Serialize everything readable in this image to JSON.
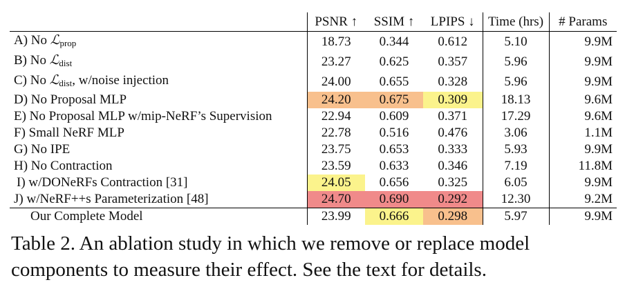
{
  "columns": [
    "",
    "PSNR ↑",
    "SSIM ↑",
    "LPIPS ↓",
    "Time (hrs)",
    "# Params"
  ],
  "rows": [
    {
      "label_pre": "A) No ",
      "symbol": "ℒ",
      "sub": "prop",
      "label_post": "",
      "psnr": "18.73",
      "ssim": "0.344",
      "lpips": "0.612",
      "time": "5.10",
      "params": "9.9M"
    },
    {
      "label_pre": "B) No ",
      "symbol": "ℒ",
      "sub": "dist",
      "label_post": "",
      "psnr": "23.27",
      "ssim": "0.625",
      "lpips": "0.357",
      "time": "5.96",
      "params": "9.9M"
    },
    {
      "label_pre": "C) No ",
      "symbol": "ℒ",
      "sub": "dist",
      "label_post": ", w/noise injection",
      "psnr": "24.00",
      "ssim": "0.655",
      "lpips": "0.328",
      "time": "5.96",
      "params": "9.9M"
    },
    {
      "label": "D) No Proposal MLP",
      "psnr": "24.20",
      "ssim": "0.675",
      "lpips": "0.309",
      "time": "18.13",
      "params": "9.6M",
      "hl": {
        "psnr": 2,
        "ssim": 2,
        "lpips": 3
      }
    },
    {
      "label": "E) No Proposal MLP w/mip-NeRF’s Supervision",
      "psnr": "22.94",
      "ssim": "0.609",
      "lpips": "0.371",
      "time": "17.29",
      "params": "9.6M"
    },
    {
      "label": "F) Small NeRF MLP",
      "psnr": "22.78",
      "ssim": "0.516",
      "lpips": "0.476",
      "time": "3.06",
      "params": "1.1M"
    },
    {
      "label": "G) No IPE",
      "psnr": "23.75",
      "ssim": "0.653",
      "lpips": "0.333",
      "time": "5.93",
      "params": "9.9M"
    },
    {
      "label": "H) No Contraction",
      "psnr": "23.59",
      "ssim": "0.633",
      "lpips": "0.346",
      "time": "7.19",
      "params": "11.8M"
    },
    {
      "label": "I) w/DONeRFs Contraction [31]",
      "psnr": "24.05",
      "ssim": "0.656",
      "lpips": "0.325",
      "time": "6.05",
      "params": "9.9M",
      "hl": {
        "psnr": 3
      },
      "indent": true
    },
    {
      "label": "J) w/NeRF++s Parameterization [48]",
      "psnr": "24.70",
      "ssim": "0.690",
      "lpips": "0.292",
      "time": "12.30",
      "params": "9.2M",
      "hl": {
        "psnr": 1,
        "ssim": 1,
        "lpips": 1
      }
    }
  ],
  "final": {
    "label": "Our Complete Model",
    "psnr": "23.99",
    "ssim": "0.666",
    "lpips": "0.298",
    "time": "5.97",
    "params": "9.9M",
    "hl": {
      "ssim": 3,
      "lpips": 2
    }
  },
  "highlight_colors": {
    "1": "#f08a8a",
    "2": "#f8c08d",
    "3": "#fbf38c"
  },
  "caption": "Table 2. An ablation study in which we remove or replace model components to measure their effect. See the text for details."
}
